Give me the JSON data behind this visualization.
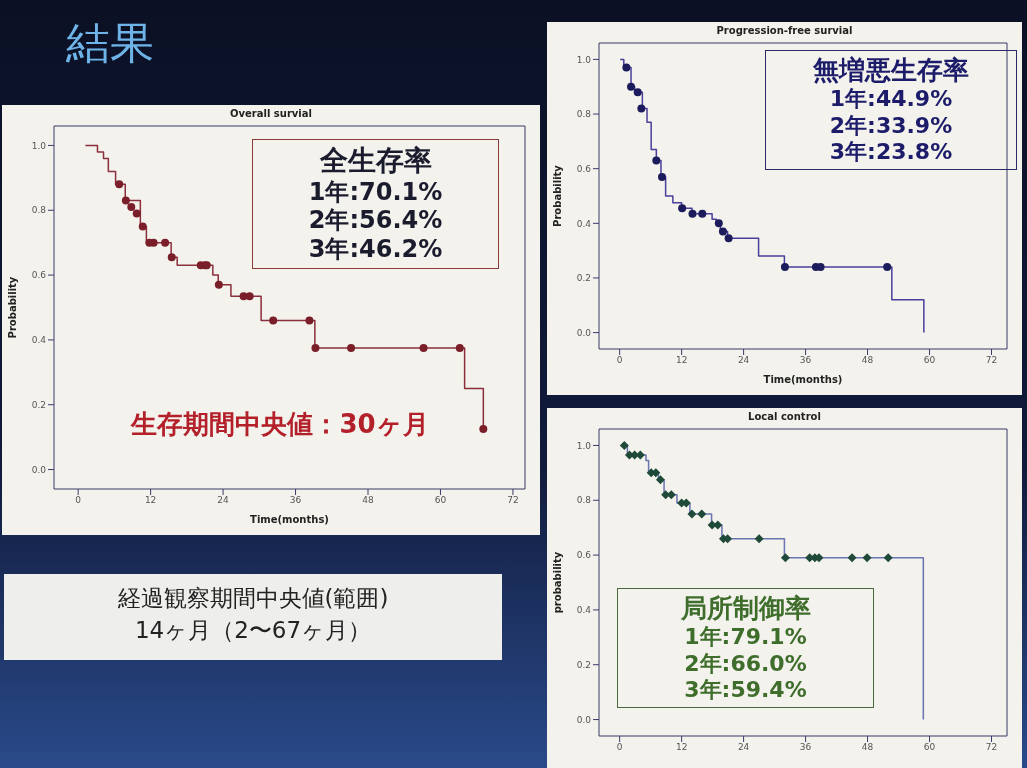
{
  "chart_data": [
    {
      "type": "step",
      "title": "Overall survial",
      "xlabel": "Time(months)",
      "ylabel": "Probability",
      "xlim": [
        -4,
        74
      ],
      "xticks": [
        0,
        12,
        24,
        36,
        48,
        60,
        72
      ],
      "ylim": [
        -0.06,
        1.06
      ],
      "yticks": [
        {
          "value": 0,
          "label": "0.0"
        },
        {
          "value": 0.2,
          "label": "0.2"
        },
        {
          "value": 0.4,
          "label": "0.4"
        },
        {
          "value": 0.6,
          "label": "0.6"
        },
        {
          "value": 0.8,
          "label": "0.8"
        },
        {
          "value": 1,
          "label": "1.0"
        }
      ],
      "annotations": [
        "全生存率",
        "1年:70.1%",
        "2年:56.4%",
        "3年:46.2%",
        "生存期間中央値：30ヶ月",
        "結果",
        "経過観察期間中央値(範囲)",
        "14ヶ月（2〜67ヶ月）"
      ],
      "series": [
        {
          "type": "step",
          "color": "#8b2f3c",
          "x": [
            1.2,
            3.2,
            4.2,
            5,
            6.2,
            7.8,
            10.3,
            11.3,
            15.4,
            16.4,
            22.3,
            23.2,
            25.3,
            30.3,
            39.2,
            64,
            67.1
          ],
          "values": [
            1,
            0.98,
            0.96,
            0.92,
            0.88,
            0.83,
            0.75,
            0.7,
            0.655,
            0.63,
            0.6,
            0.57,
            0.535,
            0.46,
            0.375,
            0.25,
            0.125
          ]
        },
        {
          "type": "scatter",
          "marker": "circle",
          "color": "#7a1f2a",
          "x": [
            6.8,
            7.9,
            8.8,
            9.7,
            10.7,
            11.8,
            12.5,
            14.4,
            15.5,
            20.3,
            21,
            21.3,
            23.3,
            27.4,
            28.4,
            32.3,
            38.3,
            39.3,
            45.2,
            57.2,
            63.2,
            67.1
          ],
          "values": [
            0.88,
            0.83,
            0.81,
            0.79,
            0.75,
            0.7,
            0.7,
            0.7,
            0.655,
            0.63,
            0.63,
            0.63,
            0.57,
            0.535,
            0.535,
            0.46,
            0.46,
            0.375,
            0.375,
            0.375,
            0.375,
            0.125
          ]
        }
      ]
    },
    {
      "type": "step",
      "title": "Progression-free survial",
      "xlabel": "Time(months)",
      "ylabel": "Probability",
      "xlim": [
        -4,
        75
      ],
      "xticks": [
        0,
        12,
        24,
        36,
        48,
        60,
        72
      ],
      "ylim": [
        -0.06,
        1.06
      ],
      "yticks": [
        {
          "value": 0,
          "label": "0.0"
        },
        {
          "value": 0.2,
          "label": "0.2"
        },
        {
          "value": 0.4,
          "label": "0.4"
        },
        {
          "value": 0.6,
          "label": "0.6"
        },
        {
          "value": 0.8,
          "label": "0.8"
        },
        {
          "value": 1,
          "label": "1.0"
        }
      ],
      "annotations": [
        "無増悪生存率",
        "1年:44.9%",
        "2年:33.9%",
        "3年:23.8%"
      ],
      "series": [
        {
          "type": "step",
          "color": "#4a3f9a",
          "x": [
            0.1,
            0.8,
            2.2,
            2.9,
            4.4,
            5.3,
            6.1,
            7.1,
            8,
            8.9,
            10.3,
            12,
            14,
            17.9,
            18.7,
            19.5,
            20.9,
            26.9,
            31.9,
            52.7,
            58.9
          ],
          "values": [
            1,
            0.97,
            0.9,
            0.88,
            0.82,
            0.77,
            0.67,
            0.63,
            0.57,
            0.5,
            0.475,
            0.455,
            0.435,
            0.415,
            0.4,
            0.37,
            0.345,
            0.28,
            0.24,
            0.12,
            0
          ]
        },
        {
          "type": "scatter",
          "marker": "circle",
          "color": "#1c1c5c",
          "x": [
            1.3,
            2.2,
            3.5,
            4.2,
            7.1,
            8.2,
            12.1,
            14.1,
            16,
            19.2,
            20,
            21.1,
            32,
            38,
            38.9,
            51.8
          ],
          "values": [
            0.97,
            0.9,
            0.88,
            0.82,
            0.63,
            0.57,
            0.455,
            0.435,
            0.435,
            0.4,
            0.37,
            0.345,
            0.24,
            0.24,
            0.24,
            0.24
          ]
        }
      ]
    },
    {
      "type": "step",
      "title": "Local control",
      "ylabel": "probability",
      "xlim": [
        -4,
        75
      ],
      "xticks": [
        0,
        12,
        24,
        36,
        48,
        60,
        72
      ],
      "ylim": [
        -0.06,
        1.06
      ],
      "yticks": [
        {
          "value": 0,
          "label": "0.0"
        },
        {
          "value": 0.2,
          "label": "0.2"
        },
        {
          "value": 0.4,
          "label": "0.4"
        },
        {
          "value": 0.6,
          "label": "0.6"
        },
        {
          "value": 0.8,
          "label": "0.8"
        },
        {
          "value": 1,
          "label": "1.0"
        }
      ],
      "annotations": [
        "局所制御率",
        "1年:79.1%",
        "2年:66.0%",
        "3年:59.4%"
      ],
      "series": [
        {
          "type": "step",
          "color": "#6a74b0",
          "x": [
            0.9,
            1.5,
            5.1,
            5.6,
            7.5,
            8.6,
            11.1,
            13.6,
            17.8,
            19.8,
            31.9,
            58.8
          ],
          "values": [
            1,
            0.965,
            0.945,
            0.9,
            0.875,
            0.82,
            0.79,
            0.75,
            0.71,
            0.66,
            0.59,
            0
          ]
        },
        {
          "type": "scatter",
          "marker": "diamond",
          "color": "#1f4a3a",
          "x": [
            0.9,
            1.9,
            2.9,
            4,
            6.1,
            7,
            7.9,
            8.9,
            10,
            12,
            12.9,
            14,
            15.9,
            17.9,
            19,
            20.1,
            20.9,
            27,
            32.1,
            36.8,
            37.8,
            38.6,
            45,
            47.9,
            52
          ],
          "values": [
            1,
            0.965,
            0.965,
            0.965,
            0.9,
            0.9,
            0.875,
            0.82,
            0.82,
            0.79,
            0.79,
            0.75,
            0.75,
            0.71,
            0.71,
            0.66,
            0.66,
            0.66,
            0.59,
            0.59,
            0.59,
            0.59,
            0.59,
            0.59,
            0.59
          ]
        }
      ]
    }
  ]
}
